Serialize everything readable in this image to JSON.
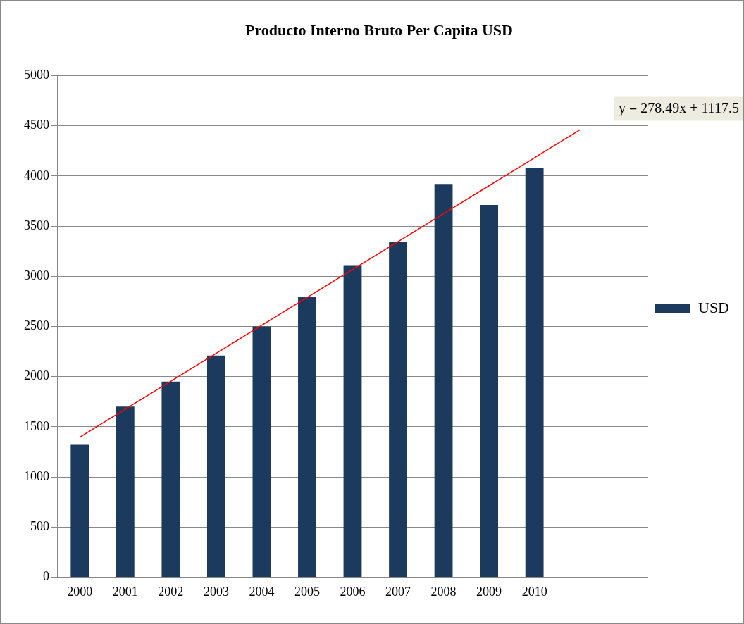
{
  "chart_data": {
    "type": "bar",
    "title": "Producto Interno Bruto Per Capita USD",
    "categories": [
      "2000",
      "2001",
      "2002",
      "2003",
      "2004",
      "2005",
      "2006",
      "2007",
      "2008",
      "2009",
      "2010",
      null,
      null
    ],
    "series": [
      {
        "name": "USD",
        "color": "#1b3a5e",
        "values": [
          1320,
          1700,
          1950,
          2210,
          2500,
          2790,
          3110,
          3340,
          3920,
          3710,
          4080,
          null,
          null
        ]
      },
      {
        "type": "line",
        "color": "#ff0000",
        "values": [
          1396,
          1675,
          1953,
          2231,
          2510,
          2788,
          3067,
          3345,
          3624,
          3902,
          4181,
          4459,
          null
        ]
      }
    ],
    "ylim": [
      0,
      5000
    ],
    "yticks": [
      0,
      500,
      1000,
      1500,
      2000,
      2500,
      3000,
      3500,
      4000,
      4500,
      5000
    ],
    "grid": "y",
    "legend": "right",
    "marker": "none",
    "annotations": [
      "y = 278.49x + 1117.5"
    ]
  }
}
